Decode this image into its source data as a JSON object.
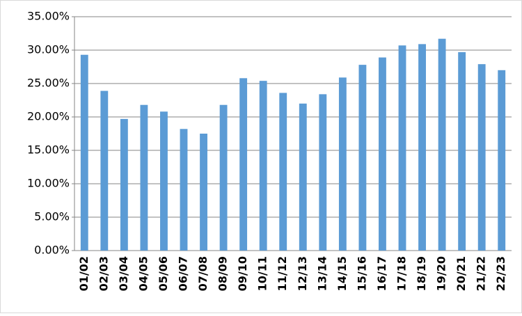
{
  "chart_data": {
    "type": "bar",
    "categories": [
      "01/02",
      "02/03",
      "03/04",
      "04/05",
      "05/06",
      "06/07",
      "07/08",
      "08/09",
      "09/10",
      "10/11",
      "11/12",
      "12/13",
      "13/14",
      "14/15",
      "15/16",
      "16/17",
      "17/18",
      "18/19",
      "19/20",
      "20/21",
      "21/22",
      "22/23"
    ],
    "values": [
      29.3,
      23.9,
      19.7,
      21.8,
      20.8,
      18.2,
      17.5,
      21.8,
      25.8,
      25.4,
      23.6,
      22.0,
      23.4,
      25.9,
      27.8,
      28.9,
      30.7,
      30.9,
      31.7,
      29.7,
      27.9,
      27.0
    ],
    "color": "#5b9bd5",
    "ylim": [
      0,
      35
    ],
    "yticks": [
      {
        "value": 0,
        "label": "0.00%"
      },
      {
        "value": 5,
        "label": "5.00%"
      },
      {
        "value": 10,
        "label": "10.00%"
      },
      {
        "value": 15,
        "label": "15.00%"
      },
      {
        "value": 20,
        "label": "20.00%"
      },
      {
        "value": 25,
        "label": "25.00%"
      },
      {
        "value": 30,
        "label": "30.00%"
      },
      {
        "value": 35,
        "label": "35.00%"
      }
    ],
    "grid": true
  }
}
